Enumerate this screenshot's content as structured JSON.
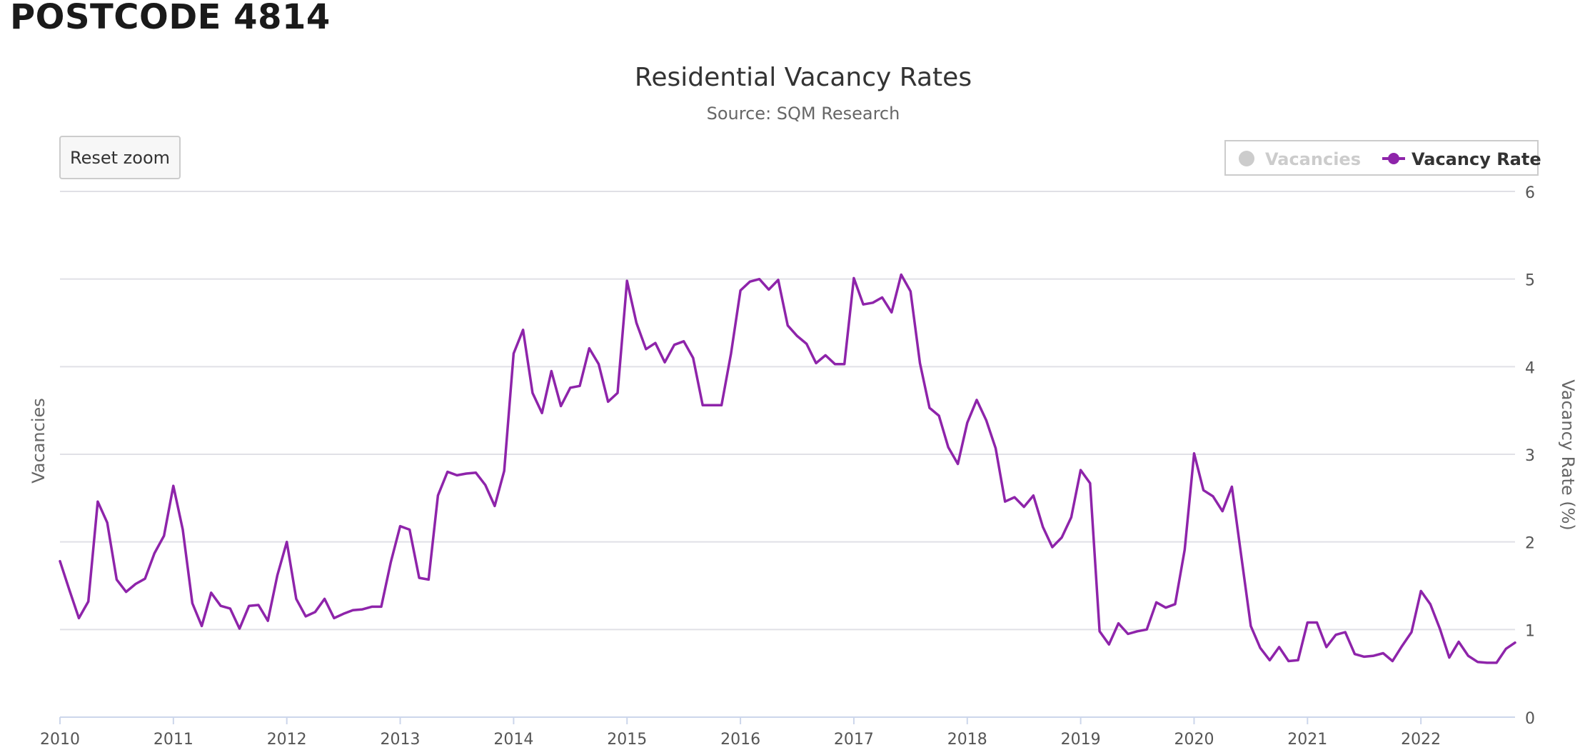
{
  "page": {
    "heading": "POSTCODE 4814"
  },
  "reset_zoom_label": "Reset zoom",
  "colors": {
    "series": "#8e24aa",
    "grid": "#e0e0e6",
    "axis_text": "#555555",
    "title": "#333333",
    "legend_hidden": "#cccccc"
  },
  "chart_data": {
    "type": "line",
    "title": "Residential Vacancy Rates",
    "subtitle": "Source: SQM Research",
    "ylabel_left": "Vacancies",
    "ylabel_right": "Vacancy Rate (%)",
    "ylim": [
      0,
      6
    ],
    "yticks": [
      0,
      1,
      2,
      3,
      4,
      5,
      6
    ],
    "xlim": [
      2010.0,
      2022.83
    ],
    "xticks": [
      2010,
      2011,
      2012,
      2013,
      2014,
      2015,
      2016,
      2017,
      2018,
      2019,
      2020,
      2021,
      2022
    ],
    "grid": true,
    "legend_position": "top-right",
    "legend": [
      {
        "name": "Vacancies",
        "visible": false
      },
      {
        "name": "Vacancy Rate",
        "visible": true
      }
    ],
    "series": [
      {
        "name": "Vacancy Rate",
        "axis": "right",
        "x": [
          2010.0,
          2010.083,
          2010.167,
          2010.25,
          2010.333,
          2010.417,
          2010.5,
          2010.583,
          2010.667,
          2010.75,
          2010.833,
          2010.917,
          2011.0,
          2011.083,
          2011.167,
          2011.25,
          2011.333,
          2011.417,
          2011.5,
          2011.583,
          2011.667,
          2011.75,
          2011.833,
          2011.917,
          2012.0,
          2012.083,
          2012.167,
          2012.25,
          2012.333,
          2012.417,
          2012.5,
          2012.583,
          2012.667,
          2012.75,
          2012.833,
          2012.917,
          2013.0,
          2013.083,
          2013.167,
          2013.25,
          2013.333,
          2013.417,
          2013.5,
          2013.583,
          2013.667,
          2013.75,
          2013.833,
          2013.917,
          2014.0,
          2014.083,
          2014.167,
          2014.25,
          2014.333,
          2014.417,
          2014.5,
          2014.583,
          2014.667,
          2014.75,
          2014.833,
          2014.917,
          2015.0,
          2015.083,
          2015.167,
          2015.25,
          2015.333,
          2015.417,
          2015.5,
          2015.583,
          2015.667,
          2015.75,
          2015.833,
          2015.917,
          2016.0,
          2016.083,
          2016.167,
          2016.25,
          2016.333,
          2016.417,
          2016.5,
          2016.583,
          2016.667,
          2016.75,
          2016.833,
          2016.917,
          2017.0,
          2017.083,
          2017.167,
          2017.25,
          2017.333,
          2017.417,
          2017.5,
          2017.583,
          2017.667,
          2017.75,
          2017.833,
          2017.917,
          2018.0,
          2018.083,
          2018.167,
          2018.25,
          2018.333,
          2018.417,
          2018.5,
          2018.583,
          2018.667,
          2018.75,
          2018.833,
          2018.917,
          2019.0,
          2019.083,
          2019.167,
          2019.25,
          2019.333,
          2019.417,
          2019.5,
          2019.583,
          2019.667,
          2019.75,
          2019.833,
          2019.917,
          2020.0,
          2020.083,
          2020.167,
          2020.25,
          2020.333,
          2020.417,
          2020.5,
          2020.583,
          2020.667,
          2020.75,
          2020.833,
          2020.917,
          2021.0,
          2021.083,
          2021.167,
          2021.25,
          2021.333,
          2021.417,
          2021.5,
          2021.583,
          2021.667,
          2021.75,
          2021.833,
          2021.917,
          2022.0,
          2022.083,
          2022.167,
          2022.25,
          2022.333,
          2022.417,
          2022.5,
          2022.583,
          2022.667,
          2022.75,
          2022.83
        ],
        "values": [
          1.78,
          1.45,
          1.13,
          1.32,
          2.46,
          2.22,
          1.57,
          1.43,
          1.52,
          1.58,
          1.87,
          2.07,
          2.64,
          2.14,
          1.3,
          1.04,
          1.42,
          1.27,
          1.24,
          1.01,
          1.27,
          1.28,
          1.1,
          1.62,
          2.0,
          1.35,
          1.15,
          1.2,
          1.35,
          1.13,
          1.18,
          1.22,
          1.23,
          1.26,
          1.26,
          1.77,
          2.18,
          2.14,
          1.59,
          1.57,
          2.53,
          2.8,
          2.76,
          2.78,
          2.79,
          2.65,
          2.41,
          2.81,
          4.15,
          4.42,
          3.7,
          3.47,
          3.95,
          3.55,
          3.76,
          3.78,
          4.21,
          4.03,
          3.6,
          3.7,
          4.98,
          4.5,
          4.2,
          4.27,
          4.05,
          4.25,
          4.29,
          4.1,
          3.56,
          3.56,
          3.56,
          4.15,
          4.87,
          4.97,
          5.0,
          4.88,
          4.99,
          4.47,
          4.35,
          4.26,
          4.04,
          4.13,
          4.03,
          4.03,
          5.01,
          4.71,
          4.73,
          4.79,
          4.62,
          5.05,
          4.86,
          4.04,
          3.53,
          3.44,
          3.08,
          2.89,
          3.36,
          3.62,
          3.39,
          3.07,
          2.46,
          2.51,
          2.4,
          2.53,
          2.17,
          1.94,
          2.05,
          2.28,
          2.82,
          2.67,
          0.98,
          0.83,
          1.07,
          0.95,
          0.98,
          1.0,
          1.31,
          1.25,
          1.29,
          1.91,
          3.01,
          2.59,
          2.52,
          2.35,
          2.63,
          1.83,
          1.04,
          0.79,
          0.65,
          0.8,
          0.64,
          0.65,
          1.08,
          1.08,
          0.8,
          0.94,
          0.97,
          0.72,
          0.69,
          0.7,
          0.73,
          0.64,
          0.81,
          0.97,
          1.44,
          1.29,
          1.01,
          0.68,
          0.86,
          0.7,
          0.63,
          0.62,
          0.62,
          0.78,
          0.85
        ]
      }
    ]
  }
}
